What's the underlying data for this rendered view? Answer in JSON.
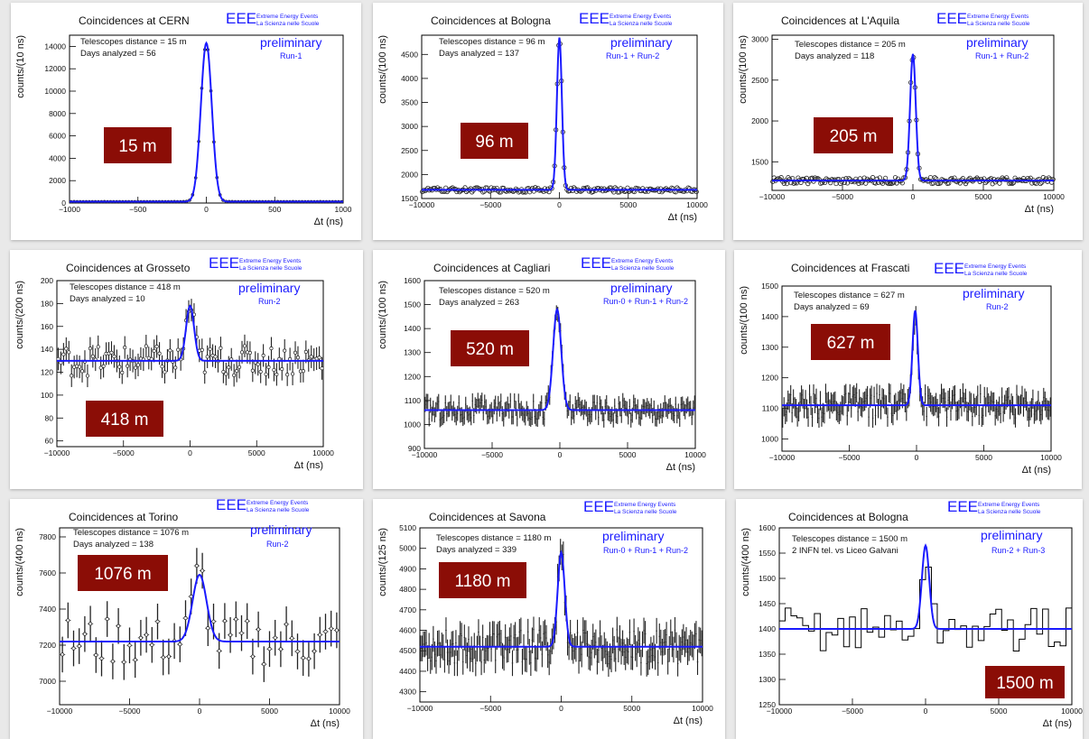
{
  "chart_data": [
    {
      "type": "line",
      "title": "Coincidences at CERN",
      "info": [
        "Telescopes distance = 15 m",
        "Days analyzed = 56"
      ],
      "run": "Run-1",
      "preliminary": "preliminary",
      "ylabel": "counts/(10 ns)",
      "xlabel": "Δt (ns)",
      "xlim": [
        -1000,
        1000
      ],
      "ylim": [
        0,
        15000
      ],
      "xticks": [
        -1000,
        -500,
        0,
        500,
        1000
      ],
      "yticks": [
        0,
        2000,
        4000,
        6000,
        8000,
        10000,
        12000,
        14000
      ],
      "xtick_labels": [
        "−1000",
        "−500",
        "0",
        "500",
        "1000"
      ],
      "ytick_labels": [
        "0",
        "2000",
        "4000",
        "6000",
        "8000",
        "10000",
        "12000",
        "14000"
      ],
      "baseline": 120,
      "peak": 14300,
      "center": 0,
      "sigma": 40,
      "noise": 0.02,
      "style": "points",
      "distance_label": "15 m",
      "eee": {
        "logo": "EEE",
        "line1": "Extreme Energy Events",
        "line2": "La Scienza nelle Scuole"
      }
    },
    {
      "type": "line",
      "title": "Coincidences at Bologna",
      "info": [
        "Telescopes distance = 96 m",
        "Days analyzed = 137"
      ],
      "run": "Run-1 + Run-2",
      "preliminary": "preliminary",
      "ylabel": "counts/(100 ns)",
      "xlabel": "Δt (ns)",
      "xlim": [
        -10000,
        10000
      ],
      "ylim": [
        1500,
        4900
      ],
      "xticks": [
        -10000,
        -5000,
        0,
        5000,
        10000
      ],
      "yticks": [
        1500,
        2000,
        2500,
        3000,
        3500,
        4000,
        4500
      ],
      "xtick_labels": [
        "−10000",
        "−5000",
        "0",
        "5000",
        "10000"
      ],
      "ytick_labels": [
        "1500",
        "2000",
        "2500",
        "3000",
        "3500",
        "4000",
        "4500"
      ],
      "baseline": 1680,
      "peak": 4850,
      "center": 0,
      "sigma": 180,
      "noise": 50,
      "style": "points",
      "distance_label": "96 m",
      "eee": {
        "logo": "EEE",
        "line1": "Extreme Energy Events",
        "line2": "La Scienza nelle Scuole"
      }
    },
    {
      "type": "line",
      "title": "Coincidences at L'Aquila",
      "info": [
        "Telescopes distance = 205 m",
        "Days analyzed = 118"
      ],
      "run": "Run-1 + Run-2",
      "preliminary": "preliminary",
      "ylabel": "counts/(100 ns)",
      "xlabel": "Δt (ns)",
      "xlim": [
        -10000,
        10000
      ],
      "ylim": [
        1150,
        3050
      ],
      "xticks": [
        -10000,
        -5000,
        0,
        5000,
        10000
      ],
      "yticks": [
        1500,
        2000,
        2500,
        3000
      ],
      "xtick_labels": [
        "−10000",
        "−5000",
        "0",
        "5000",
        "10000"
      ],
      "ytick_labels": [
        "1500",
        "2000",
        "2500",
        "3000"
      ],
      "baseline": 1270,
      "peak": 2820,
      "center": 0,
      "sigma": 200,
      "noise": 40,
      "style": "points",
      "distance_label": "205 m",
      "eee": {
        "logo": "EEE",
        "line1": "Extreme Energy Events",
        "line2": "La Scienza nelle Scuole"
      }
    },
    {
      "type": "line",
      "title": "Coincidences at Grosseto",
      "info": [
        "Telescopes distance = 418 m",
        "Days analyzed = 10"
      ],
      "run": "Run-2",
      "preliminary": "preliminary",
      "ylabel": "counts/(200 ns)",
      "xlabel": "Δt (ns)",
      "xlim": [
        -10000,
        10000
      ],
      "ylim": [
        55,
        200
      ],
      "xticks": [
        -10000,
        -5000,
        0,
        5000,
        10000
      ],
      "yticks": [
        60,
        80,
        100,
        120,
        140,
        160,
        180,
        200
      ],
      "xtick_labels": [
        "−10000",
        "−5000",
        "0",
        "5000",
        "10000"
      ],
      "ytick_labels": [
        "60",
        "80",
        "100",
        "120",
        "140",
        "160",
        "180",
        "200"
      ],
      "baseline": 130,
      "peak": 178,
      "center": 0,
      "sigma": 300,
      "noise": 11,
      "style": "errbar",
      "distance_label": "418 m",
      "eee": {
        "logo": "EEE",
        "line1": "Extreme Energy Events",
        "line2": "La Scienza nelle Scuole"
      }
    },
    {
      "type": "line",
      "title": "Coincidences at Cagliari",
      "info": [
        "Telescopes distance = 520 m",
        "Days analyzed = 263"
      ],
      "run": "Run-0 + Run-1 + Run-2",
      "preliminary": "preliminary",
      "ylabel": "counts/(100 ns)",
      "xlabel": "Δt (ns)",
      "xlim": [
        -10000,
        10000
      ],
      "ylim": [
        900,
        1600
      ],
      "xticks": [
        -10000,
        -5000,
        0,
        5000,
        10000
      ],
      "yticks": [
        900,
        1000,
        1100,
        1200,
        1300,
        1400,
        1500,
        1600
      ],
      "xtick_labels": [
        "−10000",
        "−5000",
        "0",
        "5000",
        "10000"
      ],
      "ytick_labels": [
        "900",
        "1000",
        "1100",
        "1200",
        "1300",
        "1400",
        "1500",
        "1600"
      ],
      "baseline": 1060,
      "peak": 1480,
      "center": -200,
      "sigma": 300,
      "noise": 35,
      "style": "errbar",
      "distance_label": "520 m",
      "eee": {
        "logo": "EEE",
        "line1": "Extreme Energy Events",
        "line2": "La Scienza nelle Scuole"
      }
    },
    {
      "type": "line",
      "title": "Coincidences at Frascati",
      "info": [
        "Telescopes distance = 627 m",
        "Days analyzed = 69"
      ],
      "run": "Run-2",
      "preliminary": "preliminary",
      "ylabel": "counts/(100 ns)",
      "xlabel": "Δt (ns)",
      "xlim": [
        -10000,
        10000
      ],
      "ylim": [
        960,
        1500
      ],
      "xticks": [
        -10000,
        -5000,
        0,
        5000,
        10000
      ],
      "yticks": [
        1000,
        1100,
        1200,
        1300,
        1400,
        1500
      ],
      "xtick_labels": [
        "−10000",
        "−5000",
        "0",
        "5000",
        "10000"
      ],
      "ytick_labels": [
        "1000",
        "1100",
        "1200",
        "1300",
        "1400",
        "1500"
      ],
      "baseline": 1110,
      "peak": 1420,
      "center": -100,
      "sigma": 200,
      "noise": 35,
      "style": "errbar",
      "distance_label": "627 m",
      "eee": {
        "logo": "EEE",
        "line1": "Extreme Energy Events",
        "line2": "La Scienza nelle Scuole"
      }
    },
    {
      "type": "line",
      "title": "Coincidences at Torino",
      "info": [
        "Telescopes distance = 1076 m",
        "Days analyzed = 138"
      ],
      "run": "Run-2",
      "preliminary": "preliminary",
      "ylabel": "counts/(400 ns)",
      "xlabel": "Δt (ns)",
      "xlim": [
        -10000,
        10000
      ],
      "ylim": [
        6870,
        7850
      ],
      "xticks": [
        -10000,
        -5000,
        0,
        5000,
        10000
      ],
      "yticks": [
        7000,
        7200,
        7400,
        7600,
        7800
      ],
      "xtick_labels": [
        "−10000",
        "−5000",
        "0",
        "5000",
        "10000"
      ],
      "ytick_labels": [
        "7000",
        "7200",
        "7400",
        "7600",
        "7800"
      ],
      "baseline": 7220,
      "peak": 7590,
      "center": 0,
      "sigma": 500,
      "noise": 110,
      "style": "errbar",
      "distance_label": "1076 m",
      "eee": {
        "logo": "EEE",
        "line1": "Extreme Energy Events",
        "line2": "La Scienza nelle Scuole"
      }
    },
    {
      "type": "line",
      "title": "Coincidences at Savona",
      "info": [
        "Telescopes distance = 1180 m",
        "Days analyzed = 339"
      ],
      "run": "Run-0 + Run-1 + Run-2",
      "preliminary": "preliminary",
      "ylabel": "counts/(125 ns)",
      "xlabel": "Δt (ns)",
      "xlim": [
        -10000,
        10000
      ],
      "ylim": [
        4250,
        5100
      ],
      "xticks": [
        -10000,
        -5000,
        0,
        5000,
        10000
      ],
      "yticks": [
        4300,
        4400,
        4500,
        4600,
        4700,
        4800,
        4900,
        5000,
        5100
      ],
      "xtick_labels": [
        "−10000",
        "−5000",
        "0",
        "5000",
        "10000"
      ],
      "ytick_labels": [
        "4300",
        "4400",
        "4500",
        "4600",
        "4700",
        "4800",
        "4900",
        "5000",
        "5100"
      ],
      "baseline": 4520,
      "peak": 4980,
      "center": 0,
      "sigma": 250,
      "noise": 70,
      "style": "errbar",
      "distance_label": "1180 m",
      "eee": {
        "logo": "EEE",
        "line1": "Extreme Energy Events",
        "line2": "La Scienza nelle Scuole"
      }
    },
    {
      "type": "line",
      "title": "Coincidences at Bologna",
      "info": [
        "Telescopes distance = 1500 m",
        "2 INFN tel. vs Liceo Galvani"
      ],
      "run": "Run-2 + Run-3",
      "preliminary": "preliminary",
      "ylabel": "counts/(400 ns)",
      "xlabel": "Δt (ns)",
      "xlim": [
        -10000,
        10000
      ],
      "ylim": [
        1250,
        1600
      ],
      "xticks": [
        -10000,
        -5000,
        0,
        5000,
        10000
      ],
      "yticks": [
        1250,
        1300,
        1350,
        1400,
        1450,
        1500,
        1550,
        1600
      ],
      "xtick_labels": [
        "−10000",
        "−5000",
        "0",
        "5000",
        "10000"
      ],
      "ytick_labels": [
        "1250",
        "1300",
        "1350",
        "1400",
        "1450",
        "1500",
        "1550",
        "1600"
      ],
      "baseline": 1400,
      "peak": 1565,
      "center": 0,
      "sigma": 250,
      "noise": 35,
      "style": "hist",
      "distance_label": "1500 m",
      "eee": {
        "logo": "EEE",
        "line1": "Extreme Energy Events",
        "line2": "La Scienza nelle Scuole"
      }
    }
  ]
}
